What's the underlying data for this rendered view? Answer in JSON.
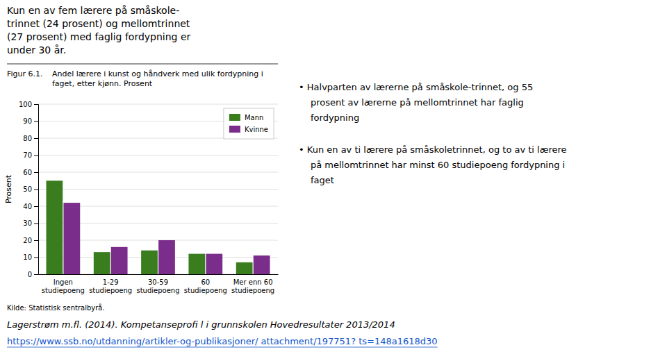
{
  "chart_data": {
    "type": "bar",
    "title": "Andel lærere i kunst og håndverk med ulik fordypning i faget, etter kjønn. Prosent",
    "ylabel": "Prosent",
    "categories": [
      "Ingen\nstudiepoeng",
      "1-29\nstudiepoeng",
      "30-59\nstudiepoeng",
      "60\nstudiepoeng",
      "Mer enn 60\nstudiepoeng"
    ],
    "series": [
      {
        "name": "Mann",
        "color": "#3a7d1e",
        "values": [
          55,
          13,
          14,
          12,
          7
        ]
      },
      {
        "name": "Kvinne",
        "color": "#7b2d8b",
        "values": [
          42,
          16,
          20,
          12,
          11
        ]
      }
    ],
    "ylim": [
      0,
      100
    ],
    "yticks": [
      0,
      10,
      20,
      30,
      40,
      50,
      60,
      70,
      80,
      90,
      100
    ],
    "grid": true,
    "legend": "upper right",
    "annotations": [
      "Figur 6.1.",
      "Kilde: Statistisk sentralbyrå.",
      "Lagerstrøm m.fl. (2014). Kompetanseprofi l i grunnskolen Hovedresultater 2013/2014",
      "https://www.ssb.no/utdanning/artikler-og-publikasjoner/ attachment/197751? ts=148a1618d30",
      "Kun en av fem lærere på småskole-\ntrinnet (24 prosent) og mellomtrinnet\n(27 prosent) med faglig fordypning er\nunder 30 år.",
      "•  Halvparten av lærerne på småskole-trinnet, og 55",
      "prosent av lærerne på mellomtrinnet har faglig",
      "fordypning",
      "•  Kun en av ti lærere på småskoletrinnet, og to av ti lærere",
      "på mellomtrinnet har minst 60 studiepoeng fordypning i",
      "faget"
    ]
  }
}
